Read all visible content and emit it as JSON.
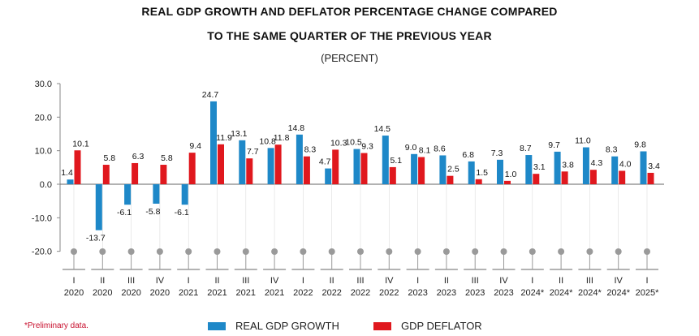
{
  "title_line1": "REAL GDP GROWTH AND DEFLATOR PERCENTAGE CHANGE COMPARED",
  "title_line2": "TO THE SAME QUARTER OF THE PREVIOUS YEAR",
  "subtitle": "(PERCENT)",
  "note": "*Preliminary data.",
  "colors": {
    "gdp": "#1e88c8",
    "deflator": "#e0181e",
    "axis": "#888888"
  },
  "chart_data": {
    "type": "bar",
    "categories": [
      [
        "I",
        "2020"
      ],
      [
        "II",
        "2020"
      ],
      [
        "III",
        "2020"
      ],
      [
        "IV",
        "2020"
      ],
      [
        "I",
        "2021"
      ],
      [
        "II",
        "2021"
      ],
      [
        "III",
        "2021"
      ],
      [
        "IV",
        "2021"
      ],
      [
        "I",
        "2022"
      ],
      [
        "II",
        "2022"
      ],
      [
        "III",
        "2022"
      ],
      [
        "IV",
        "2022"
      ],
      [
        "I",
        "2023"
      ],
      [
        "II",
        "2023"
      ],
      [
        "III",
        "2023"
      ],
      [
        "IV",
        "2023"
      ],
      [
        "I",
        "2024*"
      ],
      [
        "II",
        "2024*"
      ],
      [
        "III",
        "2024*"
      ],
      [
        "IV",
        "2024*"
      ],
      [
        "I",
        "2025*"
      ]
    ],
    "series": [
      {
        "name": "REAL GDP GROWTH",
        "values": [
          1.4,
          -13.7,
          -6.1,
          -5.8,
          -6.1,
          24.7,
          13.1,
          10.8,
          14.8,
          4.7,
          10.5,
          14.5,
          9.0,
          8.6,
          6.8,
          7.3,
          8.7,
          9.7,
          11.0,
          8.3,
          9.8
        ],
        "labels": [
          "1.4",
          "-13.7",
          "-6.1",
          "-5.8",
          "-6.1",
          "24.7",
          "13.1",
          "10.8",
          "14.8",
          "4.7",
          "10.5",
          "14.5",
          "9.0",
          "8.6",
          "6.8",
          "7.3",
          "8.7",
          "9.7",
          "11.0",
          "8.3",
          "9.8"
        ]
      },
      {
        "name": "GDP DEFLATOR",
        "values": [
          10.1,
          5.8,
          6.3,
          5.8,
          9.4,
          11.9,
          7.7,
          11.8,
          8.3,
          10.3,
          9.3,
          5.1,
          8.1,
          2.5,
          1.5,
          1.0,
          3.1,
          3.8,
          4.3,
          4.0,
          3.4
        ],
        "labels": [
          "10.1",
          "5.8",
          "6.3",
          "5.8",
          "9.4",
          "11.9",
          "7.7",
          "11.8",
          "8.3",
          "10.3",
          "9.3",
          "5.1",
          "8.1",
          "2.5",
          "1.5",
          "1.0",
          "3.1",
          "3.8",
          "4.3",
          "4.0",
          "3.4"
        ]
      }
    ],
    "yticks": [
      "30.0",
      "20.0",
      "10.0",
      "0.0",
      "-10.0",
      "-20.0"
    ],
    "yticks_values": [
      30,
      20,
      10,
      0,
      -10,
      -20
    ],
    "ylim": [
      -20,
      30
    ],
    "grid": false,
    "legend_position": "bottom"
  }
}
